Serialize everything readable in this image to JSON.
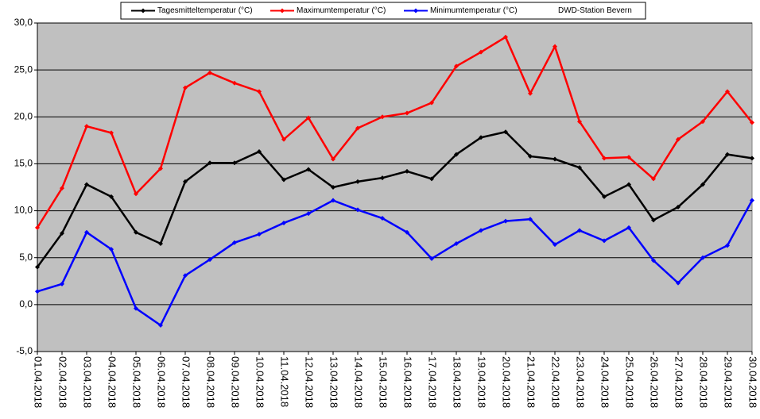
{
  "chart_data": {
    "type": "line",
    "annotation": "DWD-Station Bevern",
    "categories": [
      "01.04.2018",
      "02.04.2018",
      "03.04.2018",
      "04.04.2018",
      "05.04.2018",
      "06.04.2018",
      "07.04.2018",
      "08.04.2018",
      "09.04.2018",
      "10.04.2018",
      "11.04.2018",
      "12.04.2018",
      "13.04.2018",
      "14.04.2018",
      "15.04.2018",
      "16.04.2018",
      "17.04.2018",
      "18.04.2018",
      "19.04.2018",
      "20.04.2018",
      "21.04.2018",
      "22.04.2018",
      "23.04.2018",
      "24.04.2018",
      "25.04.2018",
      "26.04.2018",
      "27.04.2018",
      "28.04.2018",
      "29.04.2018",
      "30.04.2018"
    ],
    "series": [
      {
        "name": "Tagesmitteltemperatur (°C)",
        "color": "#000000",
        "values": [
          4.0,
          7.6,
          12.8,
          11.5,
          7.7,
          6.5,
          13.1,
          15.1,
          15.1,
          16.3,
          13.3,
          14.4,
          12.5,
          13.1,
          13.5,
          14.2,
          13.4,
          16.0,
          17.8,
          18.4,
          15.8,
          15.5,
          14.6,
          11.5,
          12.8,
          9.0,
          10.4,
          12.8,
          16.0,
          15.6
        ]
      },
      {
        "name": "Maximumtemperatur (°C)",
        "color": "#ff0000",
        "values": [
          8.2,
          12.4,
          19.0,
          18.3,
          11.8,
          14.5,
          23.1,
          24.7,
          23.6,
          22.7,
          17.6,
          19.9,
          15.5,
          18.8,
          20.0,
          20.4,
          21.5,
          25.4,
          26.9,
          28.5,
          22.5,
          27.5,
          19.5,
          15.6,
          15.7,
          13.4,
          17.6,
          19.5,
          22.7,
          19.4
        ]
      },
      {
        "name": "Minimumtemperatur (°C)",
        "color": "#0000ff",
        "values": [
          1.4,
          2.2,
          7.7,
          5.9,
          -0.4,
          -2.2,
          3.1,
          4.8,
          6.6,
          7.5,
          8.7,
          9.7,
          11.1,
          10.1,
          9.2,
          7.7,
          4.9,
          6.5,
          7.9,
          8.9,
          9.1,
          6.4,
          7.9,
          6.8,
          8.2,
          4.7,
          2.3,
          5.0,
          6.3,
          11.1
        ]
      }
    ],
    "ylim": [
      -5,
      30
    ],
    "yticks": [
      {
        "value": -5,
        "label": "-5,0"
      },
      {
        "value": 0,
        "label": "0,0"
      },
      {
        "value": 5,
        "label": "5,0"
      },
      {
        "value": 10,
        "label": "10,0"
      },
      {
        "value": 15,
        "label": "15,0"
      },
      {
        "value": 20,
        "label": "20,0"
      },
      {
        "value": 25,
        "label": "25,0"
      },
      {
        "value": 30,
        "label": "30,0"
      }
    ],
    "grid": true,
    "plot_background": "#c0c0c0"
  }
}
